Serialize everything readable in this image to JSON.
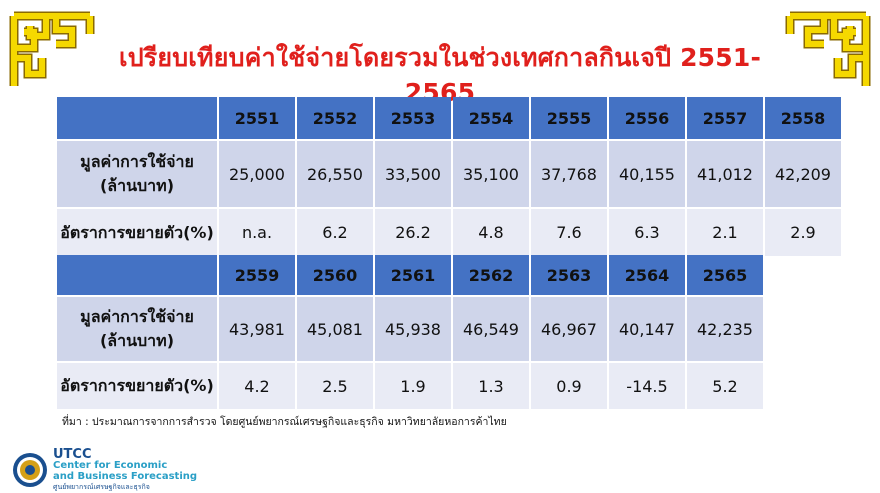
{
  "title": "เปรียบเทียบค่าใช้จ่ายโดยรวมในช่วงเทศกาลกินเจปี 2551-2565",
  "row_labels": {
    "spending_line1": "มูลค่าการใช้จ่าย",
    "spending_line2": "(ล้านบาท)",
    "growth": "อัตราการขยายตัว(%)"
  },
  "table1": {
    "years": [
      "2551",
      "2552",
      "2553",
      "2554",
      "2555",
      "2556",
      "2557",
      "2558"
    ],
    "spending": [
      "25,000",
      "26,550",
      "33,500",
      "35,100",
      "37,768",
      "40,155",
      "41,012",
      "42,209"
    ],
    "growth": [
      "n.a.",
      "6.2",
      "26.2",
      "4.8",
      "7.6",
      "6.3",
      "2.1",
      "2.9"
    ]
  },
  "table2": {
    "years": [
      "2559",
      "2560",
      "2561",
      "2562",
      "2563",
      "2564",
      "2565"
    ],
    "spending": [
      "43,981",
      "45,081",
      "45,938",
      "46,549",
      "46,967",
      "40,147",
      "42,235"
    ],
    "growth": [
      "4.2",
      "2.5",
      "1.9",
      "1.3",
      "0.9",
      "-14.5",
      "5.2"
    ]
  },
  "source": "ที่มา : ประมาณการจากการสำรวจ โดยศูนย์พยากรณ์เศรษฐกิจและธุรกิจ  มหาวิทยาลัยหอการค้าไทย",
  "brand": {
    "line1": "UTCC",
    "line2": "Center for Economic",
    "line3": "and Business Forecasting",
    "line4": "ศูนย์พยากรณ์เศรษฐกิจและธุรกิจ"
  },
  "colors": {
    "title": "#e0201c",
    "header_fill": "#4472c4",
    "row_fill_dark": "#cfd5ea",
    "row_fill_light": "#e9ebf5",
    "ornament": "#f5d800"
  },
  "icons": [
    "chinese-ornament-icon",
    "utcc-seal-icon"
  ]
}
